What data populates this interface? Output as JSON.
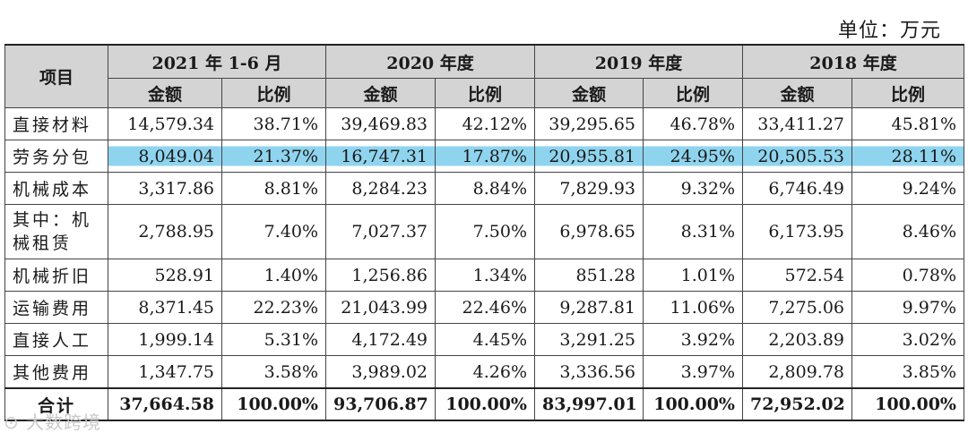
{
  "unit": "单位：万元",
  "header": {
    "item": "项目",
    "periods": [
      "2021 年 1-6 月",
      "2020 年度",
      "2019 年度",
      "2018 年度"
    ],
    "amount": "金额",
    "ratio": "比例"
  },
  "rows": [
    {
      "label": "直接材料",
      "cells": [
        "14,579.34",
        "38.71%",
        "39,469.83",
        "42.12%",
        "39,295.65",
        "46.78%",
        "33,411.27",
        "45.81%"
      ]
    },
    {
      "label": "劳务分包",
      "cells": [
        "8,049.04",
        "21.37%",
        "16,747.31",
        "17.87%",
        "20,955.81",
        "24.95%",
        "20,505.53",
        "28.11%"
      ]
    },
    {
      "label": "机械成本",
      "cells": [
        "3,317.86",
        "8.81%",
        "8,284.23",
        "8.84%",
        "7,829.93",
        "9.32%",
        "6,746.49",
        "9.24%"
      ]
    },
    {
      "label": "其中：机械租赁",
      "cells": [
        "2,788.95",
        "7.40%",
        "7,027.37",
        "7.50%",
        "6,978.65",
        "8.31%",
        "6,173.95",
        "8.46%"
      ]
    },
    {
      "label": "机械折旧",
      "cells": [
        "528.91",
        "1.40%",
        "1,256.86",
        "1.34%",
        "851.28",
        "1.01%",
        "572.54",
        "0.78%"
      ]
    },
    {
      "label": "运输费用",
      "cells": [
        "8,371.45",
        "22.23%",
        "21,043.99",
        "22.46%",
        "9,287.81",
        "11.06%",
        "7,275.06",
        "9.97%"
      ]
    },
    {
      "label": "直接人工",
      "cells": [
        "1,999.14",
        "5.31%",
        "4,172.49",
        "4.45%",
        "3,291.25",
        "3.92%",
        "2,203.89",
        "3.02%"
      ]
    },
    {
      "label": "其他费用",
      "cells": [
        "1,347.75",
        "3.58%",
        "3,989.02",
        "4.26%",
        "3,336.56",
        "3.97%",
        "2,809.78",
        "3.85%"
      ]
    },
    {
      "label": "合计",
      "cells": [
        "37,664.58",
        "100.00%",
        "93,706.87",
        "100.00%",
        "83,997.01",
        "100.00%",
        "72,952.02",
        "100.00%"
      ]
    }
  ],
  "watermark": "大数跨境"
}
